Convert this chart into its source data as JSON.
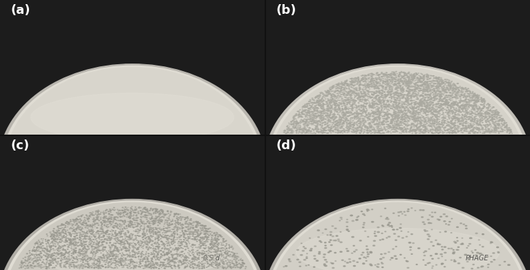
{
  "background_color": "#1c1c1c",
  "divider_color": "#111111",
  "label_color": "#ffffff",
  "label_fontsize": 13,
  "figsize": [
    7.67,
    3.91
  ],
  "dpi": 100,
  "panels": {
    "a": {
      "plate_bg": "#d6d3ca",
      "plate_inner": "#d8d5cc",
      "rim_color": "#b8b5ae",
      "n_plaques": 0,
      "plaque_color": "#999990",
      "plaque_size": [
        0.003,
        0.006
      ],
      "label": "(a)",
      "bottom_text": null
    },
    "b": {
      "plate_bg": "#d0cdc4",
      "plate_inner": "#d5d2c9",
      "rim_color": "#c0bdb6",
      "n_plaques": 6000,
      "plaque_color": "#aaa9a0",
      "plaque_size": [
        0.002,
        0.006
      ],
      "label": "(b)",
      "bottom_text": null
    },
    "c": {
      "plate_bg": "#c8c5bc",
      "plate_inner": "#ccc9c0",
      "rim_color": "#b0ada6",
      "n_plaques": 4000,
      "plaque_color": "#9a9990",
      "plaque_size": [
        0.002,
        0.005
      ],
      "label": "(c)",
      "bottom_text": "0.S.d"
    },
    "d": {
      "plate_bg": "#ccc9c0",
      "plate_inner": "#d2cfc6",
      "rim_color": "#b5b2ab",
      "n_plaques": 350,
      "plaque_color": "#9a9990",
      "plaque_size": [
        0.004,
        0.009
      ],
      "label": "(d)",
      "bottom_text": "PHAGE"
    }
  }
}
